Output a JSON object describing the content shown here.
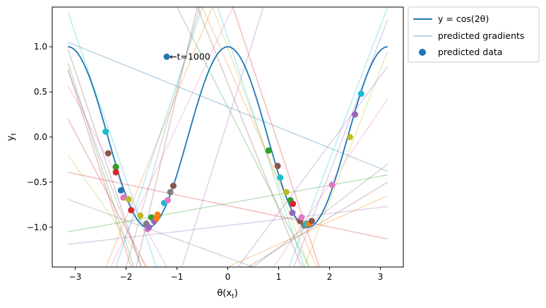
{
  "chart_data": {
    "type": "line",
    "title": "",
    "xlabel": "θ(x_t)",
    "ylabel": "y_t",
    "xlim": [
      -3.45,
      3.45
    ],
    "ylim": [
      -1.44,
      1.44
    ],
    "xticks": [
      -3,
      -2,
      -1,
      0,
      1,
      2,
      3
    ],
    "xtick_labels": [
      "−3",
      "−2",
      "−1",
      "0",
      "1",
      "2",
      "3"
    ],
    "yticks": [
      -1.0,
      -0.5,
      0.0,
      0.5,
      1.0
    ],
    "ytick_labels": [
      "−1.0",
      "−0.5",
      "0.0",
      "0.5",
      "1.0"
    ],
    "grid": false,
    "legend_position": "outside-top-right",
    "curve": {
      "name": "y = cos(2θ)",
      "formula": "cos(2*theta)",
      "x_range": [
        -3.14159,
        3.14159
      ],
      "color": "#1f77b4"
    },
    "legend": [
      {
        "label": "y = cos(2θ)",
        "kind": "line",
        "color": "#1f77b4"
      },
      {
        "label": "predicted gradients",
        "kind": "faint-line",
        "color": "#1f77b4"
      },
      {
        "label": "predicted data",
        "kind": "marker",
        "color": "#1f77b4"
      }
    ],
    "palette": [
      "#1f77b4",
      "#ff7f0e",
      "#2ca02c",
      "#d62728",
      "#9467bd",
      "#8c564b",
      "#e377c2",
      "#7f7f7f",
      "#bcbd22",
      "#17becf"
    ],
    "predicted_data": [
      {
        "x": -1.2,
        "y": 0.89,
        "color": "#1f77b4"
      },
      {
        "x": -2.4,
        "y": 0.06,
        "color": "#17becf"
      },
      {
        "x": -2.35,
        "y": -0.18,
        "color": "#8c564b"
      },
      {
        "x": -2.2,
        "y": -0.33,
        "color": "#2ca02c"
      },
      {
        "x": -2.2,
        "y": -0.39,
        "color": "#d62728"
      },
      {
        "x": -2.1,
        "y": -0.59,
        "color": "#1f77b4"
      },
      {
        "x": -2.05,
        "y": -0.67,
        "color": "#e377c2"
      },
      {
        "x": -1.95,
        "y": -0.69,
        "color": "#bcbd22"
      },
      {
        "x": -1.9,
        "y": -0.81,
        "color": "#d62728"
      },
      {
        "x": -1.72,
        "y": -0.87,
        "color": "#bcbd22"
      },
      {
        "x": -1.6,
        "y": -0.96,
        "color": "#7f7f7f"
      },
      {
        "x": -1.58,
        "y": -1.02,
        "color": "#e377c2"
      },
      {
        "x": -1.55,
        "y": -1.0,
        "color": "#9467bd"
      },
      {
        "x": -1.5,
        "y": -0.89,
        "color": "#2ca02c"
      },
      {
        "x": -1.45,
        "y": -0.93,
        "color": "#9467bd"
      },
      {
        "x": -1.38,
        "y": -0.86,
        "color": "#ff7f0e"
      },
      {
        "x": -1.4,
        "y": -0.9,
        "color": "#ff7f0e"
      },
      {
        "x": -1.25,
        "y": -0.73,
        "color": "#17becf"
      },
      {
        "x": -1.18,
        "y": -0.7,
        "color": "#e377c2"
      },
      {
        "x": -1.13,
        "y": -0.61,
        "color": "#7f7f7f"
      },
      {
        "x": -1.07,
        "y": -0.54,
        "color": "#8c564b"
      },
      {
        "x": 0.8,
        "y": -0.15,
        "color": "#2ca02c"
      },
      {
        "x": 0.98,
        "y": -0.32,
        "color": "#8c564b"
      },
      {
        "x": 1.03,
        "y": -0.45,
        "color": "#17becf"
      },
      {
        "x": 1.15,
        "y": -0.61,
        "color": "#bcbd22"
      },
      {
        "x": 1.23,
        "y": -0.7,
        "color": "#2ca02c"
      },
      {
        "x": 1.28,
        "y": -0.74,
        "color": "#d62728"
      },
      {
        "x": 1.27,
        "y": -0.84,
        "color": "#9467bd"
      },
      {
        "x": 1.42,
        "y": -0.93,
        "color": "#8c564b"
      },
      {
        "x": 1.45,
        "y": -0.89,
        "color": "#e377c2"
      },
      {
        "x": 1.5,
        "y": -0.98,
        "color": "#7f7f7f"
      },
      {
        "x": 1.55,
        "y": -0.96,
        "color": "#17becf"
      },
      {
        "x": 1.6,
        "y": -0.96,
        "color": "#ff7f0e"
      },
      {
        "x": 1.65,
        "y": -0.93,
        "color": "#8c564b"
      },
      {
        "x": 2.05,
        "y": -0.53,
        "color": "#e377c2"
      },
      {
        "x": 2.4,
        "y": 0.0,
        "color": "#bcbd22"
      },
      {
        "x": 2.5,
        "y": 0.25,
        "color": "#9467bd"
      },
      {
        "x": 2.62,
        "y": 0.48,
        "color": "#17becf"
      }
    ],
    "predicted_gradients": [
      {
        "x1": -3.14,
        "y1": 1.38,
        "x2": -1.4,
        "y2": -1.44,
        "color": "#17becf"
      },
      {
        "x1": -3.14,
        "y1": 0.97,
        "x2": -1.7,
        "y2": -1.44,
        "color": "#8c564b"
      },
      {
        "x1": -3.14,
        "y1": 0.82,
        "x2": -1.85,
        "y2": -1.44,
        "color": "#2ca02c"
      },
      {
        "x1": -3.14,
        "y1": 0.75,
        "x2": -1.9,
        "y2": -1.44,
        "color": "#d62728"
      },
      {
        "x1": -3.14,
        "y1": 0.74,
        "x2": -1.7,
        "y2": -1.44,
        "color": "#9467bd"
      },
      {
        "x1": -3.14,
        "y1": 0.57,
        "x2": -1.2,
        "y2": -1.44,
        "color": "#e377c2"
      },
      {
        "x1": -3.14,
        "y1": 0.2,
        "x2": -1.6,
        "y2": -1.44,
        "color": "#d62728"
      },
      {
        "x1": -3.14,
        "y1": -0.2,
        "x2": -1.6,
        "y2": -1.44,
        "color": "#bcbd22"
      },
      {
        "x1": -3.14,
        "y1": -0.39,
        "x2": 3.14,
        "y2": -1.13,
        "color": "#d62728"
      },
      {
        "x1": -3.14,
        "y1": -0.69,
        "x2": 0.5,
        "y2": -1.44,
        "color": "#7f7f7f"
      },
      {
        "x1": -3.14,
        "y1": -1.05,
        "x2": 3.14,
        "y2": -0.42,
        "color": "#2ca02c"
      },
      {
        "x1": -3.14,
        "y1": -1.19,
        "x2": 3.14,
        "y2": -0.77,
        "color": "#9467bd"
      },
      {
        "x1": -3.14,
        "y1": 1.05,
        "x2": 3.14,
        "y2": -0.38,
        "color": "#1f77b4"
      },
      {
        "x1": -2.4,
        "y1": -1.44,
        "x2": -0.3,
        "y2": 1.44,
        "color": "#ff7f0e"
      },
      {
        "x1": -2.2,
        "y1": -1.44,
        "x2": -0.5,
        "y2": 1.44,
        "color": "#17becf"
      },
      {
        "x1": -2.0,
        "y1": -1.44,
        "x2": -0.55,
        "y2": 1.44,
        "color": "#7f7f7f"
      },
      {
        "x1": -1.8,
        "y1": -1.44,
        "x2": -0.6,
        "y2": 1.44,
        "color": "#8c564b"
      },
      {
        "x1": -2.3,
        "y1": -1.44,
        "x2": 0.1,
        "y2": 1.44,
        "color": "#e377c2"
      },
      {
        "x1": -0.9,
        "y1": -1.44,
        "x2": 0.7,
        "y2": 1.44,
        "color": "#9467bd"
      },
      {
        "x1": -1.0,
        "y1": 1.44,
        "x2": 1.6,
        "y2": -1.44,
        "color": "#2ca02c"
      },
      {
        "x1": -0.6,
        "y1": 1.44,
        "x2": 1.45,
        "y2": -1.44,
        "color": "#8c564b"
      },
      {
        "x1": -0.2,
        "y1": 1.44,
        "x2": 1.5,
        "y2": -1.44,
        "color": "#17becf"
      },
      {
        "x1": -0.3,
        "y1": 1.44,
        "x2": 1.6,
        "y2": -1.44,
        "color": "#bcbd22"
      },
      {
        "x1": -0.5,
        "y1": 1.44,
        "x2": 1.75,
        "y2": -1.44,
        "color": "#ff7f0e"
      },
      {
        "x1": 0.1,
        "y1": 1.44,
        "x2": 1.8,
        "y2": -1.44,
        "color": "#d62728"
      },
      {
        "x1": 1.2,
        "y1": -1.44,
        "x2": 3.14,
        "y2": 1.44,
        "color": "#17becf"
      },
      {
        "x1": 1.3,
        "y1": -1.44,
        "x2": 3.14,
        "y2": 1.3,
        "color": "#9467bd"
      },
      {
        "x1": 1.5,
        "y1": -1.44,
        "x2": 3.14,
        "y2": 0.95,
        "color": "#bcbd22"
      },
      {
        "x1": 0.2,
        "y1": -1.44,
        "x2": 3.14,
        "y2": 0.78,
        "color": "#9467bd"
      },
      {
        "x1": 0.9,
        "y1": -1.44,
        "x2": 3.14,
        "y2": 0.42,
        "color": "#e377c2"
      },
      {
        "x1": 0.5,
        "y1": -1.44,
        "x2": 3.14,
        "y2": -0.3,
        "color": "#7f7f7f"
      },
      {
        "x1": 0.0,
        "y1": -1.44,
        "x2": 3.14,
        "y2": -0.65,
        "color": "#ff7f0e"
      },
      {
        "x1": 0.4,
        "y1": -1.44,
        "x2": 3.14,
        "y2": -0.5,
        "color": "#8c564b"
      }
    ],
    "annotation": {
      "text": "←t=1000",
      "x": -1.2,
      "y": 0.89
    }
  }
}
